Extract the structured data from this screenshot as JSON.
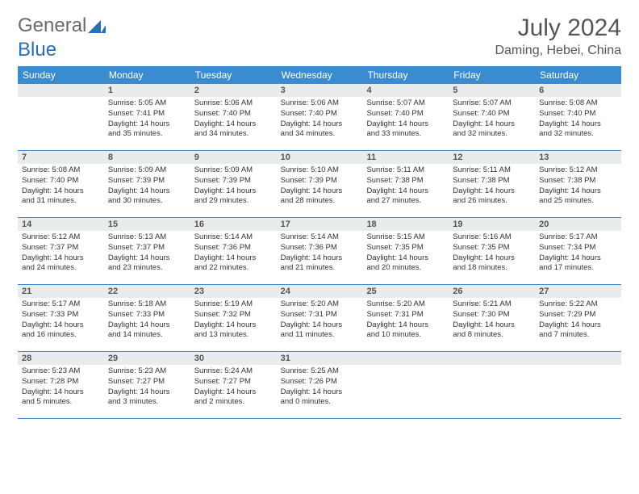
{
  "logo": {
    "text1": "General",
    "text2": "Blue"
  },
  "title": "July 2024",
  "location": "Daming, Hebei, China",
  "header_bg": "#3b8bd0",
  "daynum_bg": "#e9eced",
  "weekdays": [
    "Sunday",
    "Monday",
    "Tuesday",
    "Wednesday",
    "Thursday",
    "Friday",
    "Saturday"
  ],
  "weeks": [
    [
      {
        "num": "",
        "lines": []
      },
      {
        "num": "1",
        "lines": [
          "Sunrise: 5:05 AM",
          "Sunset: 7:41 PM",
          "Daylight: 14 hours",
          "and 35 minutes."
        ]
      },
      {
        "num": "2",
        "lines": [
          "Sunrise: 5:06 AM",
          "Sunset: 7:40 PM",
          "Daylight: 14 hours",
          "and 34 minutes."
        ]
      },
      {
        "num": "3",
        "lines": [
          "Sunrise: 5:06 AM",
          "Sunset: 7:40 PM",
          "Daylight: 14 hours",
          "and 34 minutes."
        ]
      },
      {
        "num": "4",
        "lines": [
          "Sunrise: 5:07 AM",
          "Sunset: 7:40 PM",
          "Daylight: 14 hours",
          "and 33 minutes."
        ]
      },
      {
        "num": "5",
        "lines": [
          "Sunrise: 5:07 AM",
          "Sunset: 7:40 PM",
          "Daylight: 14 hours",
          "and 32 minutes."
        ]
      },
      {
        "num": "6",
        "lines": [
          "Sunrise: 5:08 AM",
          "Sunset: 7:40 PM",
          "Daylight: 14 hours",
          "and 32 minutes."
        ]
      }
    ],
    [
      {
        "num": "7",
        "lines": [
          "Sunrise: 5:08 AM",
          "Sunset: 7:40 PM",
          "Daylight: 14 hours",
          "and 31 minutes."
        ]
      },
      {
        "num": "8",
        "lines": [
          "Sunrise: 5:09 AM",
          "Sunset: 7:39 PM",
          "Daylight: 14 hours",
          "and 30 minutes."
        ]
      },
      {
        "num": "9",
        "lines": [
          "Sunrise: 5:09 AM",
          "Sunset: 7:39 PM",
          "Daylight: 14 hours",
          "and 29 minutes."
        ]
      },
      {
        "num": "10",
        "lines": [
          "Sunrise: 5:10 AM",
          "Sunset: 7:39 PM",
          "Daylight: 14 hours",
          "and 28 minutes."
        ]
      },
      {
        "num": "11",
        "lines": [
          "Sunrise: 5:11 AM",
          "Sunset: 7:38 PM",
          "Daylight: 14 hours",
          "and 27 minutes."
        ]
      },
      {
        "num": "12",
        "lines": [
          "Sunrise: 5:11 AM",
          "Sunset: 7:38 PM",
          "Daylight: 14 hours",
          "and 26 minutes."
        ]
      },
      {
        "num": "13",
        "lines": [
          "Sunrise: 5:12 AM",
          "Sunset: 7:38 PM",
          "Daylight: 14 hours",
          "and 25 minutes."
        ]
      }
    ],
    [
      {
        "num": "14",
        "lines": [
          "Sunrise: 5:12 AM",
          "Sunset: 7:37 PM",
          "Daylight: 14 hours",
          "and 24 minutes."
        ]
      },
      {
        "num": "15",
        "lines": [
          "Sunrise: 5:13 AM",
          "Sunset: 7:37 PM",
          "Daylight: 14 hours",
          "and 23 minutes."
        ]
      },
      {
        "num": "16",
        "lines": [
          "Sunrise: 5:14 AM",
          "Sunset: 7:36 PM",
          "Daylight: 14 hours",
          "and 22 minutes."
        ]
      },
      {
        "num": "17",
        "lines": [
          "Sunrise: 5:14 AM",
          "Sunset: 7:36 PM",
          "Daylight: 14 hours",
          "and 21 minutes."
        ]
      },
      {
        "num": "18",
        "lines": [
          "Sunrise: 5:15 AM",
          "Sunset: 7:35 PM",
          "Daylight: 14 hours",
          "and 20 minutes."
        ]
      },
      {
        "num": "19",
        "lines": [
          "Sunrise: 5:16 AM",
          "Sunset: 7:35 PM",
          "Daylight: 14 hours",
          "and 18 minutes."
        ]
      },
      {
        "num": "20",
        "lines": [
          "Sunrise: 5:17 AM",
          "Sunset: 7:34 PM",
          "Daylight: 14 hours",
          "and 17 minutes."
        ]
      }
    ],
    [
      {
        "num": "21",
        "lines": [
          "Sunrise: 5:17 AM",
          "Sunset: 7:33 PM",
          "Daylight: 14 hours",
          "and 16 minutes."
        ]
      },
      {
        "num": "22",
        "lines": [
          "Sunrise: 5:18 AM",
          "Sunset: 7:33 PM",
          "Daylight: 14 hours",
          "and 14 minutes."
        ]
      },
      {
        "num": "23",
        "lines": [
          "Sunrise: 5:19 AM",
          "Sunset: 7:32 PM",
          "Daylight: 14 hours",
          "and 13 minutes."
        ]
      },
      {
        "num": "24",
        "lines": [
          "Sunrise: 5:20 AM",
          "Sunset: 7:31 PM",
          "Daylight: 14 hours",
          "and 11 minutes."
        ]
      },
      {
        "num": "25",
        "lines": [
          "Sunrise: 5:20 AM",
          "Sunset: 7:31 PM",
          "Daylight: 14 hours",
          "and 10 minutes."
        ]
      },
      {
        "num": "26",
        "lines": [
          "Sunrise: 5:21 AM",
          "Sunset: 7:30 PM",
          "Daylight: 14 hours",
          "and 8 minutes."
        ]
      },
      {
        "num": "27",
        "lines": [
          "Sunrise: 5:22 AM",
          "Sunset: 7:29 PM",
          "Daylight: 14 hours",
          "and 7 minutes."
        ]
      }
    ],
    [
      {
        "num": "28",
        "lines": [
          "Sunrise: 5:23 AM",
          "Sunset: 7:28 PM",
          "Daylight: 14 hours",
          "and 5 minutes."
        ]
      },
      {
        "num": "29",
        "lines": [
          "Sunrise: 5:23 AM",
          "Sunset: 7:27 PM",
          "Daylight: 14 hours",
          "and 3 minutes."
        ]
      },
      {
        "num": "30",
        "lines": [
          "Sunrise: 5:24 AM",
          "Sunset: 7:27 PM",
          "Daylight: 14 hours",
          "and 2 minutes."
        ]
      },
      {
        "num": "31",
        "lines": [
          "Sunrise: 5:25 AM",
          "Sunset: 7:26 PM",
          "Daylight: 14 hours",
          "and 0 minutes."
        ]
      },
      {
        "num": "",
        "lines": []
      },
      {
        "num": "",
        "lines": []
      },
      {
        "num": "",
        "lines": []
      }
    ]
  ]
}
